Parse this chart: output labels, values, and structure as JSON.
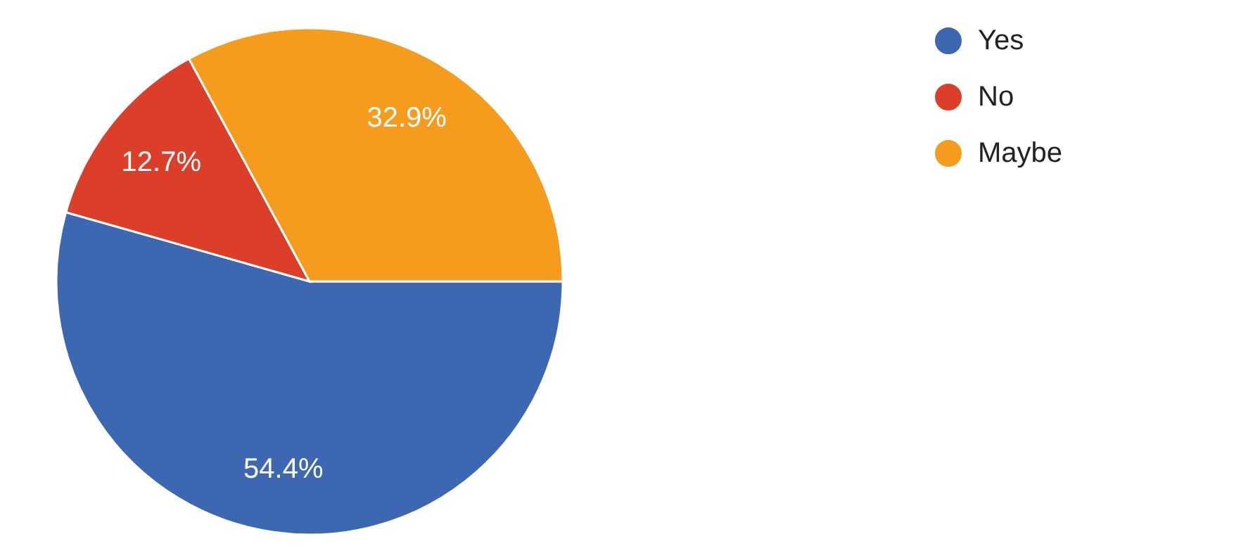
{
  "chart_data": {
    "type": "pie",
    "categories": [
      "Yes",
      "No",
      "Maybe"
    ],
    "values": [
      54.4,
      12.7,
      32.9
    ],
    "colors": [
      "#3d67b1",
      "#dc3f29",
      "#f59b1e"
    ],
    "value_labels": [
      "54.4%",
      "12.7%",
      "32.9%"
    ],
    "legend": "top right"
  }
}
